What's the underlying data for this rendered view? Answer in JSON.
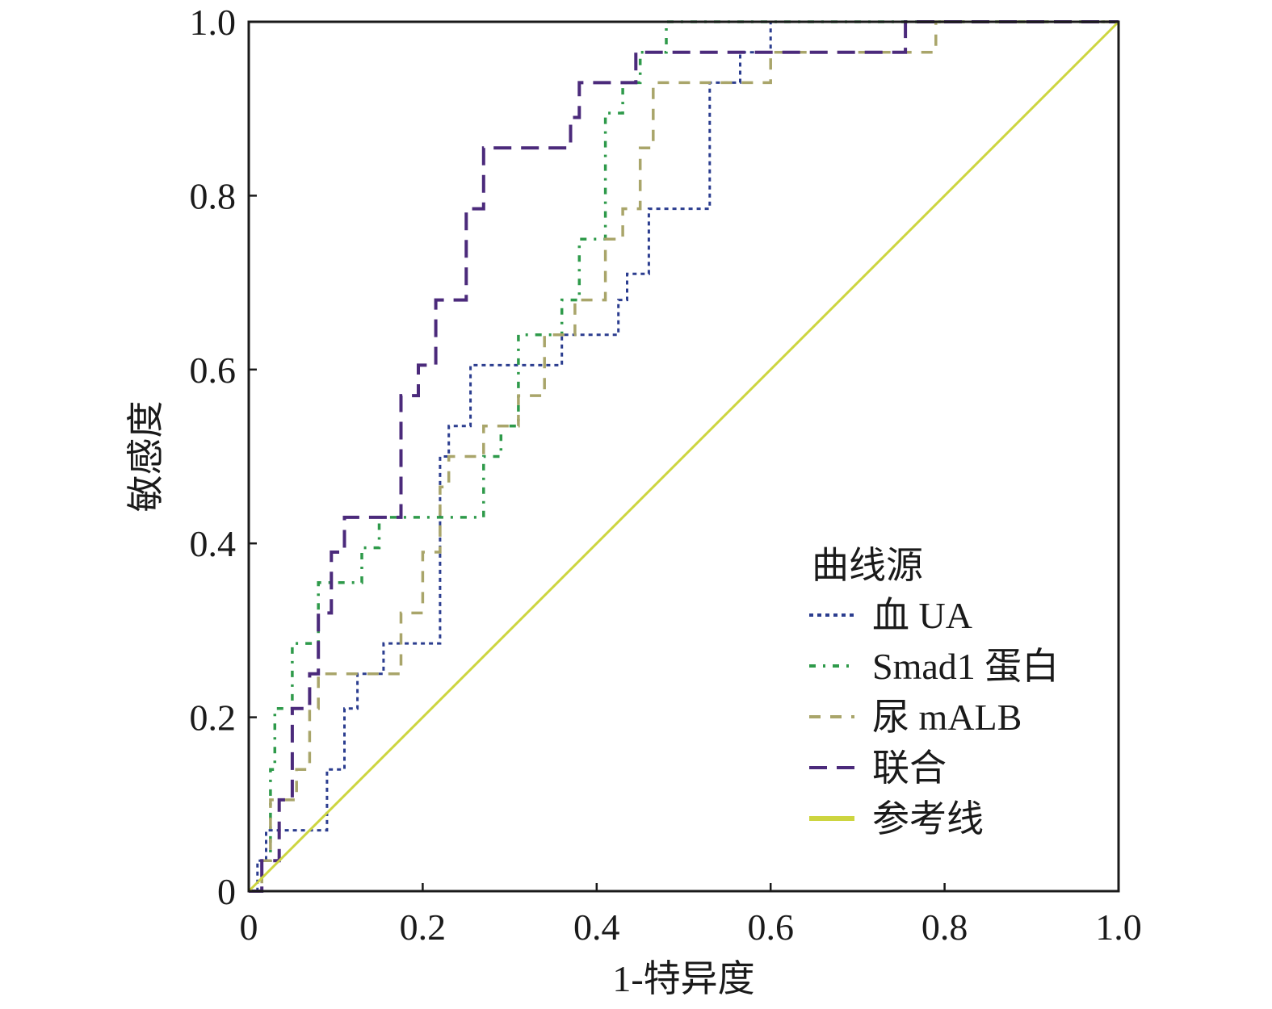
{
  "chart_data": {
    "type": "line",
    "title": "",
    "xlabel": "1-特异度",
    "ylabel": "敏感度",
    "xlim": [
      0,
      1
    ],
    "ylim": [
      0,
      1
    ],
    "xticks": [
      0,
      0.2,
      0.4,
      0.6,
      0.8,
      1.0
    ],
    "xtick_labels": [
      "0",
      "0.2",
      "0.4",
      "0.6",
      "0.8",
      "1.0"
    ],
    "yticks": [
      0,
      0.2,
      0.4,
      0.6,
      0.8,
      1.0
    ],
    "ytick_labels": [
      "0",
      "0.2",
      "0.4",
      "0.6",
      "0.8",
      "1.0"
    ],
    "legend": {
      "title": "曲线源",
      "position": "lower-right"
    },
    "series": [
      {
        "name": "血 UA",
        "color": "#2b3d8f",
        "dash": "dotted",
        "points": [
          [
            0,
            0
          ],
          [
            0.01,
            0
          ],
          [
            0.01,
            0.035
          ],
          [
            0.02,
            0.035
          ],
          [
            0.02,
            0.07
          ],
          [
            0.09,
            0.07
          ],
          [
            0.09,
            0.14
          ],
          [
            0.11,
            0.14
          ],
          [
            0.11,
            0.21
          ],
          [
            0.125,
            0.21
          ],
          [
            0.125,
            0.25
          ],
          [
            0.155,
            0.25
          ],
          [
            0.155,
            0.285
          ],
          [
            0.22,
            0.285
          ],
          [
            0.22,
            0.5
          ],
          [
            0.23,
            0.5
          ],
          [
            0.23,
            0.535
          ],
          [
            0.255,
            0.535
          ],
          [
            0.255,
            0.605
          ],
          [
            0.36,
            0.605
          ],
          [
            0.36,
            0.64
          ],
          [
            0.425,
            0.64
          ],
          [
            0.425,
            0.68
          ],
          [
            0.435,
            0.68
          ],
          [
            0.435,
            0.71
          ],
          [
            0.46,
            0.71
          ],
          [
            0.46,
            0.785
          ],
          [
            0.53,
            0.785
          ],
          [
            0.53,
            0.93
          ],
          [
            0.565,
            0.93
          ],
          [
            0.565,
            0.965
          ],
          [
            0.6,
            0.965
          ],
          [
            0.6,
            1.0
          ],
          [
            1.0,
            1.0
          ]
        ]
      },
      {
        "name": "Smad1 蛋白",
        "color": "#2e9a4a",
        "dash": "dash-dot",
        "points": [
          [
            0,
            0
          ],
          [
            0.015,
            0
          ],
          [
            0.015,
            0.035
          ],
          [
            0.025,
            0.035
          ],
          [
            0.025,
            0.14
          ],
          [
            0.03,
            0.14
          ],
          [
            0.03,
            0.21
          ],
          [
            0.05,
            0.21
          ],
          [
            0.05,
            0.285
          ],
          [
            0.08,
            0.285
          ],
          [
            0.08,
            0.355
          ],
          [
            0.13,
            0.355
          ],
          [
            0.13,
            0.395
          ],
          [
            0.15,
            0.395
          ],
          [
            0.15,
            0.43
          ],
          [
            0.27,
            0.43
          ],
          [
            0.27,
            0.5
          ],
          [
            0.29,
            0.5
          ],
          [
            0.29,
            0.535
          ],
          [
            0.31,
            0.535
          ],
          [
            0.31,
            0.64
          ],
          [
            0.36,
            0.64
          ],
          [
            0.36,
            0.68
          ],
          [
            0.38,
            0.68
          ],
          [
            0.38,
            0.75
          ],
          [
            0.41,
            0.75
          ],
          [
            0.41,
            0.895
          ],
          [
            0.43,
            0.895
          ],
          [
            0.43,
            0.93
          ],
          [
            0.45,
            0.93
          ],
          [
            0.45,
            0.965
          ],
          [
            0.48,
            0.965
          ],
          [
            0.48,
            1.0
          ],
          [
            1.0,
            1.0
          ]
        ]
      },
      {
        "name": "尿 mALB",
        "color": "#a9a56a",
        "dash": "dashed",
        "points": [
          [
            0,
            0
          ],
          [
            0.015,
            0
          ],
          [
            0.015,
            0.035
          ],
          [
            0.025,
            0.035
          ],
          [
            0.025,
            0.105
          ],
          [
            0.055,
            0.105
          ],
          [
            0.055,
            0.14
          ],
          [
            0.07,
            0.14
          ],
          [
            0.07,
            0.21
          ],
          [
            0.08,
            0.21
          ],
          [
            0.08,
            0.25
          ],
          [
            0.175,
            0.25
          ],
          [
            0.175,
            0.32
          ],
          [
            0.2,
            0.32
          ],
          [
            0.2,
            0.39
          ],
          [
            0.22,
            0.39
          ],
          [
            0.22,
            0.465
          ],
          [
            0.23,
            0.465
          ],
          [
            0.23,
            0.5
          ],
          [
            0.27,
            0.5
          ],
          [
            0.27,
            0.535
          ],
          [
            0.31,
            0.535
          ],
          [
            0.31,
            0.57
          ],
          [
            0.34,
            0.57
          ],
          [
            0.34,
            0.64
          ],
          [
            0.375,
            0.64
          ],
          [
            0.375,
            0.68
          ],
          [
            0.41,
            0.68
          ],
          [
            0.41,
            0.75
          ],
          [
            0.43,
            0.75
          ],
          [
            0.43,
            0.785
          ],
          [
            0.45,
            0.785
          ],
          [
            0.45,
            0.855
          ],
          [
            0.465,
            0.855
          ],
          [
            0.465,
            0.93
          ],
          [
            0.6,
            0.93
          ],
          [
            0.6,
            0.965
          ],
          [
            0.79,
            0.965
          ],
          [
            0.79,
            1.0
          ],
          [
            1.0,
            1.0
          ]
        ]
      },
      {
        "name": "联合",
        "color": "#4b2a7b",
        "dash": "long-dash",
        "points": [
          [
            0,
            0
          ],
          [
            0.015,
            0
          ],
          [
            0.015,
            0.035
          ],
          [
            0.035,
            0.035
          ],
          [
            0.035,
            0.105
          ],
          [
            0.05,
            0.105
          ],
          [
            0.05,
            0.21
          ],
          [
            0.07,
            0.21
          ],
          [
            0.07,
            0.25
          ],
          [
            0.08,
            0.25
          ],
          [
            0.08,
            0.32
          ],
          [
            0.095,
            0.32
          ],
          [
            0.095,
            0.39
          ],
          [
            0.11,
            0.39
          ],
          [
            0.11,
            0.43
          ],
          [
            0.175,
            0.43
          ],
          [
            0.175,
            0.57
          ],
          [
            0.195,
            0.57
          ],
          [
            0.195,
            0.605
          ],
          [
            0.215,
            0.605
          ],
          [
            0.215,
            0.68
          ],
          [
            0.25,
            0.68
          ],
          [
            0.25,
            0.785
          ],
          [
            0.27,
            0.785
          ],
          [
            0.27,
            0.855
          ],
          [
            0.37,
            0.855
          ],
          [
            0.37,
            0.89
          ],
          [
            0.38,
            0.89
          ],
          [
            0.38,
            0.93
          ],
          [
            0.445,
            0.93
          ],
          [
            0.445,
            0.965
          ],
          [
            0.755,
            0.965
          ],
          [
            0.755,
            1.0
          ],
          [
            1.0,
            1.0
          ]
        ]
      },
      {
        "name": "参考线",
        "color": "#cdd540",
        "dash": "solid",
        "points": [
          [
            0,
            0
          ],
          [
            1,
            1
          ]
        ]
      }
    ]
  }
}
